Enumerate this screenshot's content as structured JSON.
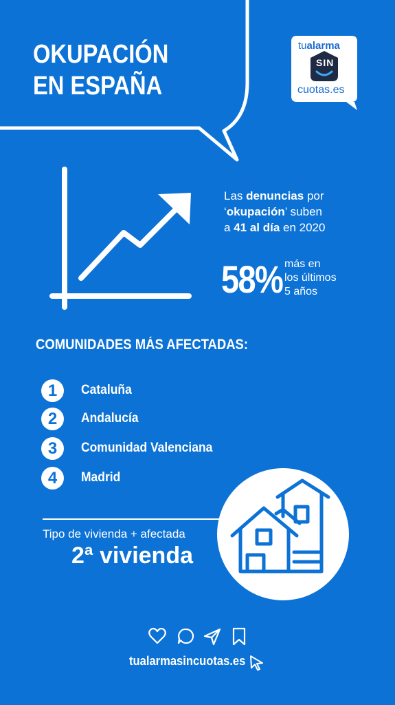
{
  "title": {
    "line1": "OKUPACIÓN",
    "line2": "EN ESPAÑA"
  },
  "logo": {
    "top_a": "tu",
    "top_b": "alarma",
    "middle": "SIN",
    "bottom": "cuotas.es"
  },
  "stats": {
    "line1_pre": "Las ",
    "line1_bold": "denuncias",
    "line1_post": " por",
    "line2_q1": "‘",
    "line2_bold": "okupación",
    "line2_q2": "’",
    "line2_post": " suben",
    "line3_pre": "a ",
    "line3_bold": "41 al día",
    "line3_post": " en 2020",
    "big_value": "58%",
    "big_note": [
      "más en",
      "los últimos",
      "5 años"
    ]
  },
  "communities": {
    "heading": "COMUNIDADES MÁS AFECTADAS:",
    "items": [
      {
        "rank": "1",
        "label": "Cataluña"
      },
      {
        "rank": "2",
        "label": "Andalucía"
      },
      {
        "rank": "3",
        "label": "Comunidad Valenciana"
      },
      {
        "rank": "4",
        "label": "Madrid"
      }
    ]
  },
  "housing": {
    "label": "Tipo de vivienda + afectada",
    "value": "2ª vivienda"
  },
  "footer": {
    "icons": [
      "heart-icon",
      "comment-icon",
      "send-icon",
      "bookmark-icon"
    ],
    "link": "tualarmasincuotas.es"
  },
  "colors": {
    "background": "#0c72d6",
    "foreground": "#ffffff"
  }
}
